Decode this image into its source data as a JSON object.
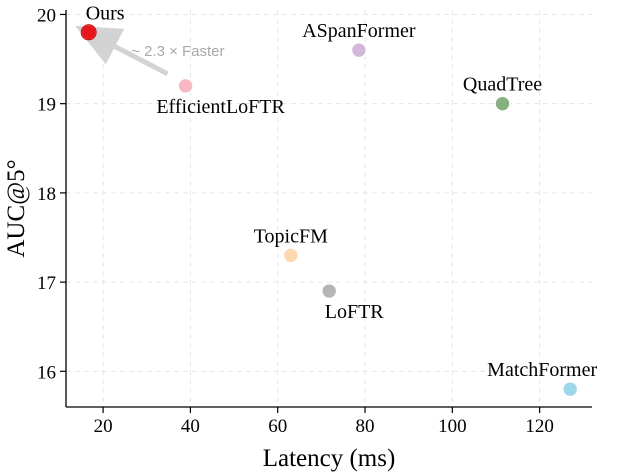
{
  "chart_data": {
    "type": "scatter",
    "xlabel": "Latency (ms)",
    "ylabel": "AUC@5°",
    "xlim": [
      11.5,
      132
    ],
    "ylim": [
      15.6,
      20.05
    ],
    "xticks": [
      "20",
      "40",
      "60",
      "80",
      "100",
      "120"
    ],
    "yticks": [
      "16",
      "17",
      "18",
      "19",
      "20"
    ],
    "grid": true,
    "points": [
      {
        "label": "Ours",
        "x": 16.7,
        "y": 19.8,
        "color": "#e8151b",
        "label_pos": "top"
      },
      {
        "label": "EfficientLoFTR",
        "x": 38.9,
        "y": 19.2,
        "color": "#f7b8c4",
        "label_pos": "bottom"
      },
      {
        "label": "ASpanFormer",
        "x": 78.6,
        "y": 19.6,
        "color": "#d4b8da",
        "label_pos": "top"
      },
      {
        "label": "QuadTree",
        "x": 111.5,
        "y": 19.0,
        "color": "#86b07f",
        "label_pos": "top"
      },
      {
        "label": "TopicFM",
        "x": 63.0,
        "y": 17.3,
        "color": "#fdd7ad",
        "label_pos": "top"
      },
      {
        "label": "LoFTR",
        "x": 71.8,
        "y": 16.9,
        "color": "#b5b5b5",
        "label_pos": "bottom"
      },
      {
        "label": "MatchFormer",
        "x": 127.0,
        "y": 15.8,
        "color": "#9ed6ea",
        "label_pos": "top"
      }
    ],
    "annotation": {
      "text": "~ 2.3 × Faster",
      "from_point": "EfficientLoFTR",
      "to_point": "Ours"
    }
  }
}
